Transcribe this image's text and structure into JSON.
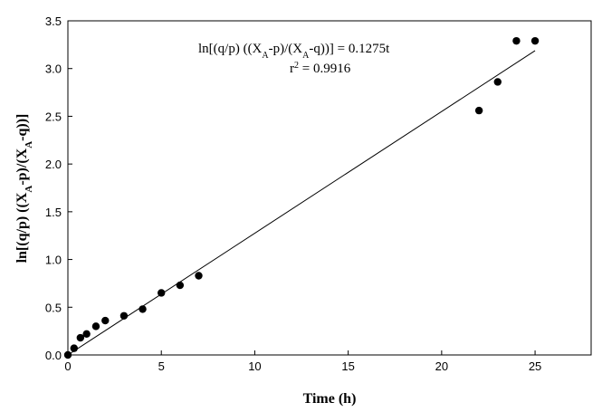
{
  "chart_data": {
    "type": "scatter",
    "xlabel": "Time (h)",
    "ylabel": {
      "prefix": "ln[(q/p) ((X",
      "sub1": "A",
      "middle": "-p)/(X",
      "sub2": "A",
      "suffix": "-q))]"
    },
    "xlim": [
      0,
      28
    ],
    "ylim": [
      0,
      3.5
    ],
    "xticks": [
      0,
      5,
      10,
      15,
      20,
      25
    ],
    "xtick_labels": [
      "0",
      "5",
      "10",
      "15",
      "20",
      "25"
    ],
    "yticks": [
      0,
      0.5,
      1.0,
      1.5,
      2.0,
      2.5,
      3.0,
      3.5
    ],
    "ytick_labels": [
      "0.0",
      "0.5",
      "1.0",
      "1.5",
      "2.0",
      "2.5",
      "3.0",
      "3.5"
    ],
    "grid": false,
    "series": [
      {
        "x": [
          0,
          0.33,
          0.67,
          1,
          1.5,
          2,
          3,
          4,
          5,
          6,
          7,
          22,
          23,
          24,
          25
        ],
        "y": [
          0.0,
          0.07,
          0.18,
          0.22,
          0.3,
          0.36,
          0.41,
          0.48,
          0.65,
          0.73,
          0.83,
          2.56,
          2.86,
          3.29,
          3.29
        ]
      }
    ],
    "fit_line": {
      "slope": 0.1275,
      "x": [
        0,
        25
      ]
    },
    "annotations": {
      "equation": {
        "prefix": "ln[(q/p) ((X",
        "sub1": "A",
        "middle": "-p)/(X",
        "sub2": "A",
        "suffix": "-q))]  = 0.1275t"
      },
      "r2": {
        "base": "r",
        "sup": "2",
        "rest": " = 0.9916"
      }
    }
  }
}
